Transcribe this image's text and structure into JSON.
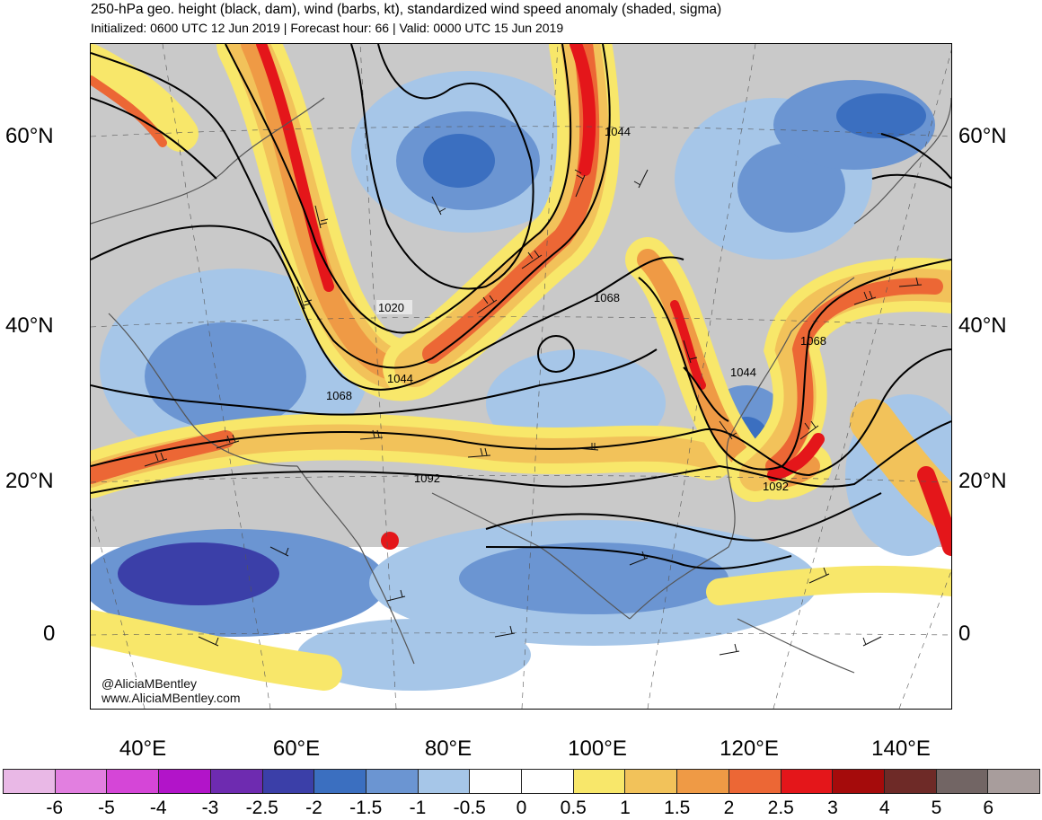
{
  "title": "250-hPa geo. height (black, dam), wind (barbs, kt), standardized wind speed anomaly (shaded, sigma)",
  "subtitle": "Initialized: 0600 UTC 12 Jun 2019 | Forecast hour: 66 | Valid: 0000 UTC 15 Jun 2019",
  "credit": {
    "handle": "@AliciaMBentley",
    "website": "www.AliciaMBentley.com"
  },
  "lat_labels": {
    "left": [
      "60°N",
      "40°N",
      "20°N",
      "0"
    ],
    "right": [
      "60°N",
      "40°N",
      "20°N",
      "0"
    ]
  },
  "lon_labels": [
    "40°E",
    "60°E",
    "80°E",
    "100°E",
    "120°E",
    "140°E"
  ],
  "contour_labels": [
    "1020",
    "1044",
    "1068",
    "1092",
    "1044",
    "1068",
    "1044",
    "1068",
    "1092"
  ],
  "colorbar": {
    "colors": [
      "#e9b8e6",
      "#e27fe0",
      "#d546d7",
      "#b214c9",
      "#6e2bb0",
      "#3b3fa8",
      "#3b6fc0",
      "#6b95d2",
      "#a6c6e8",
      "#ffffff",
      "#ffffff",
      "#f8e76a",
      "#f2c25a",
      "#ef9a45",
      "#ec6735",
      "#e4161a",
      "#a50b0b",
      "#6e2a27",
      "#726564",
      "#a89d9c"
    ],
    "labels": [
      "-6",
      "-5",
      "-4",
      "-3",
      "-2.5",
      "-2",
      "-1.5",
      "-1",
      "-0.5",
      "0",
      "0.5",
      "1",
      "1.5",
      "2",
      "2.5",
      "3",
      "4",
      "5",
      "6"
    ]
  }
}
